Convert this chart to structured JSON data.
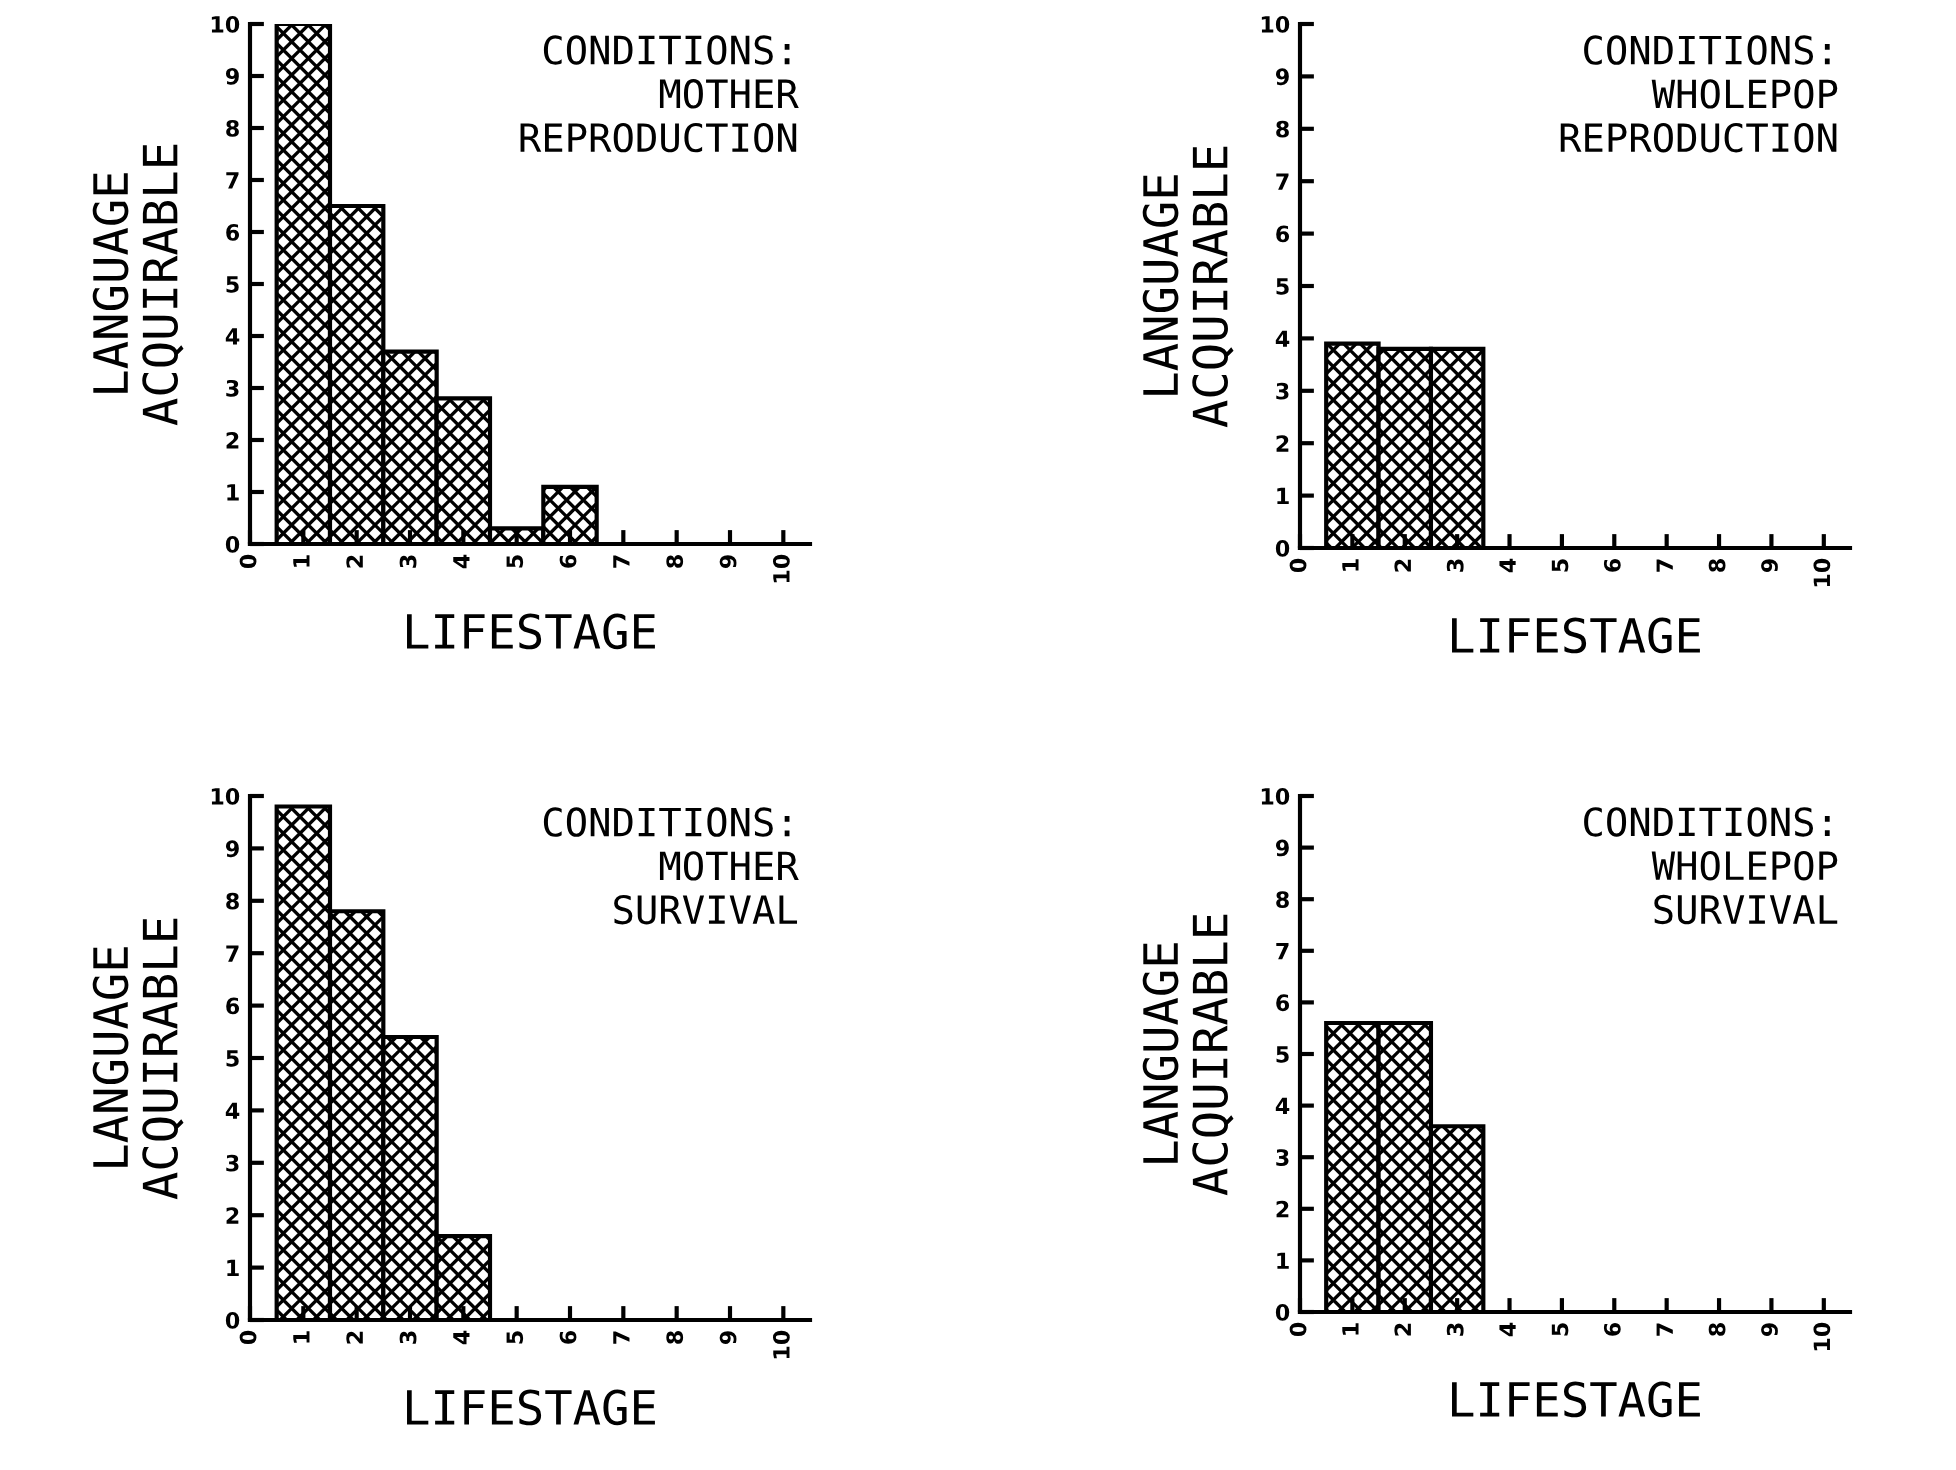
{
  "chart_data": [
    {
      "type": "bar",
      "xlabel": "LIFESTAGE",
      "ylabel": "LANGUAGE\nACQUIRABLE",
      "annotations": [
        "CONDITIONS:\n   MOTHER\n   REPRODUCTION"
      ],
      "x": [
        1,
        2,
        3,
        4,
        5,
        6,
        7,
        8,
        9,
        10
      ],
      "values": [
        10,
        6.5,
        3.7,
        2.8,
        0.3,
        1.1,
        0,
        0,
        0,
        0
      ],
      "color": "#000000",
      "xlim": [
        0,
        10.5
      ],
      "xticks": [
        0,
        1,
        2,
        3,
        4,
        5,
        6,
        7,
        8,
        9,
        10
      ],
      "ylim": [
        0,
        10
      ],
      "yticks": [
        0,
        1,
        2,
        3,
        4,
        5,
        6,
        7,
        8,
        9,
        10
      ],
      "grid": false
    },
    {
      "type": "bar",
      "xlabel": "LIFESTAGE",
      "ylabel": "LANGUAGE\nACQUIRABLE",
      "annotations": [
        "CONDITIONS:\n   WHOLEPOP\n   REPRODUCTION"
      ],
      "x": [
        1,
        2,
        3,
        4,
        5,
        6,
        7,
        8,
        9,
        10
      ],
      "values": [
        3.9,
        3.8,
        3.8,
        0,
        0,
        0,
        0,
        0,
        0,
        0
      ],
      "color": "#000000",
      "xlim": [
        0,
        10.5
      ],
      "xticks": [
        0,
        1,
        2,
        3,
        4,
        5,
        6,
        7,
        8,
        9,
        10
      ],
      "ylim": [
        0,
        10
      ],
      "yticks": [
        0,
        1,
        2,
        3,
        4,
        5,
        6,
        7,
        8,
        9,
        10
      ],
      "grid": false
    },
    {
      "type": "bar",
      "xlabel": "LIFESTAGE",
      "ylabel": "LANGUAGE\nACQUIRABLE",
      "annotations": [
        "CONDITIONS:\n   MOTHER\n   SURVIVAL"
      ],
      "x": [
        1,
        2,
        3,
        4,
        5,
        6,
        7,
        8,
        9,
        10
      ],
      "values": [
        9.8,
        7.8,
        5.4,
        1.6,
        0,
        0,
        0,
        0,
        0,
        0
      ],
      "color": "#000000",
      "xlim": [
        0,
        10.5
      ],
      "xticks": [
        0,
        1,
        2,
        3,
        4,
        5,
        6,
        7,
        8,
        9,
        10
      ],
      "ylim": [
        0,
        10
      ],
      "yticks": [
        0,
        1,
        2,
        3,
        4,
        5,
        6,
        7,
        8,
        9,
        10
      ],
      "grid": false
    },
    {
      "type": "bar",
      "xlabel": "LIFESTAGE",
      "ylabel": "LANGUAGE\nACQUIRABLE",
      "annotations": [
        "CONDITIONS:\n   WHOLEPOP\n   SURVIVAL"
      ],
      "x": [
        1,
        2,
        3,
        4,
        5,
        6,
        7,
        8,
        9,
        10
      ],
      "values": [
        5.6,
        5.6,
        3.6,
        0,
        0,
        0,
        0,
        0,
        0,
        0
      ],
      "color": "#000000",
      "xlim": [
        0,
        10.5
      ],
      "xticks": [
        0,
        1,
        2,
        3,
        4,
        5,
        6,
        7,
        8,
        9,
        10
      ],
      "ylim": [
        0,
        10
      ],
      "yticks": [
        0,
        1,
        2,
        3,
        4,
        5,
        6,
        7,
        8,
        9,
        10
      ],
      "grid": false
    }
  ]
}
